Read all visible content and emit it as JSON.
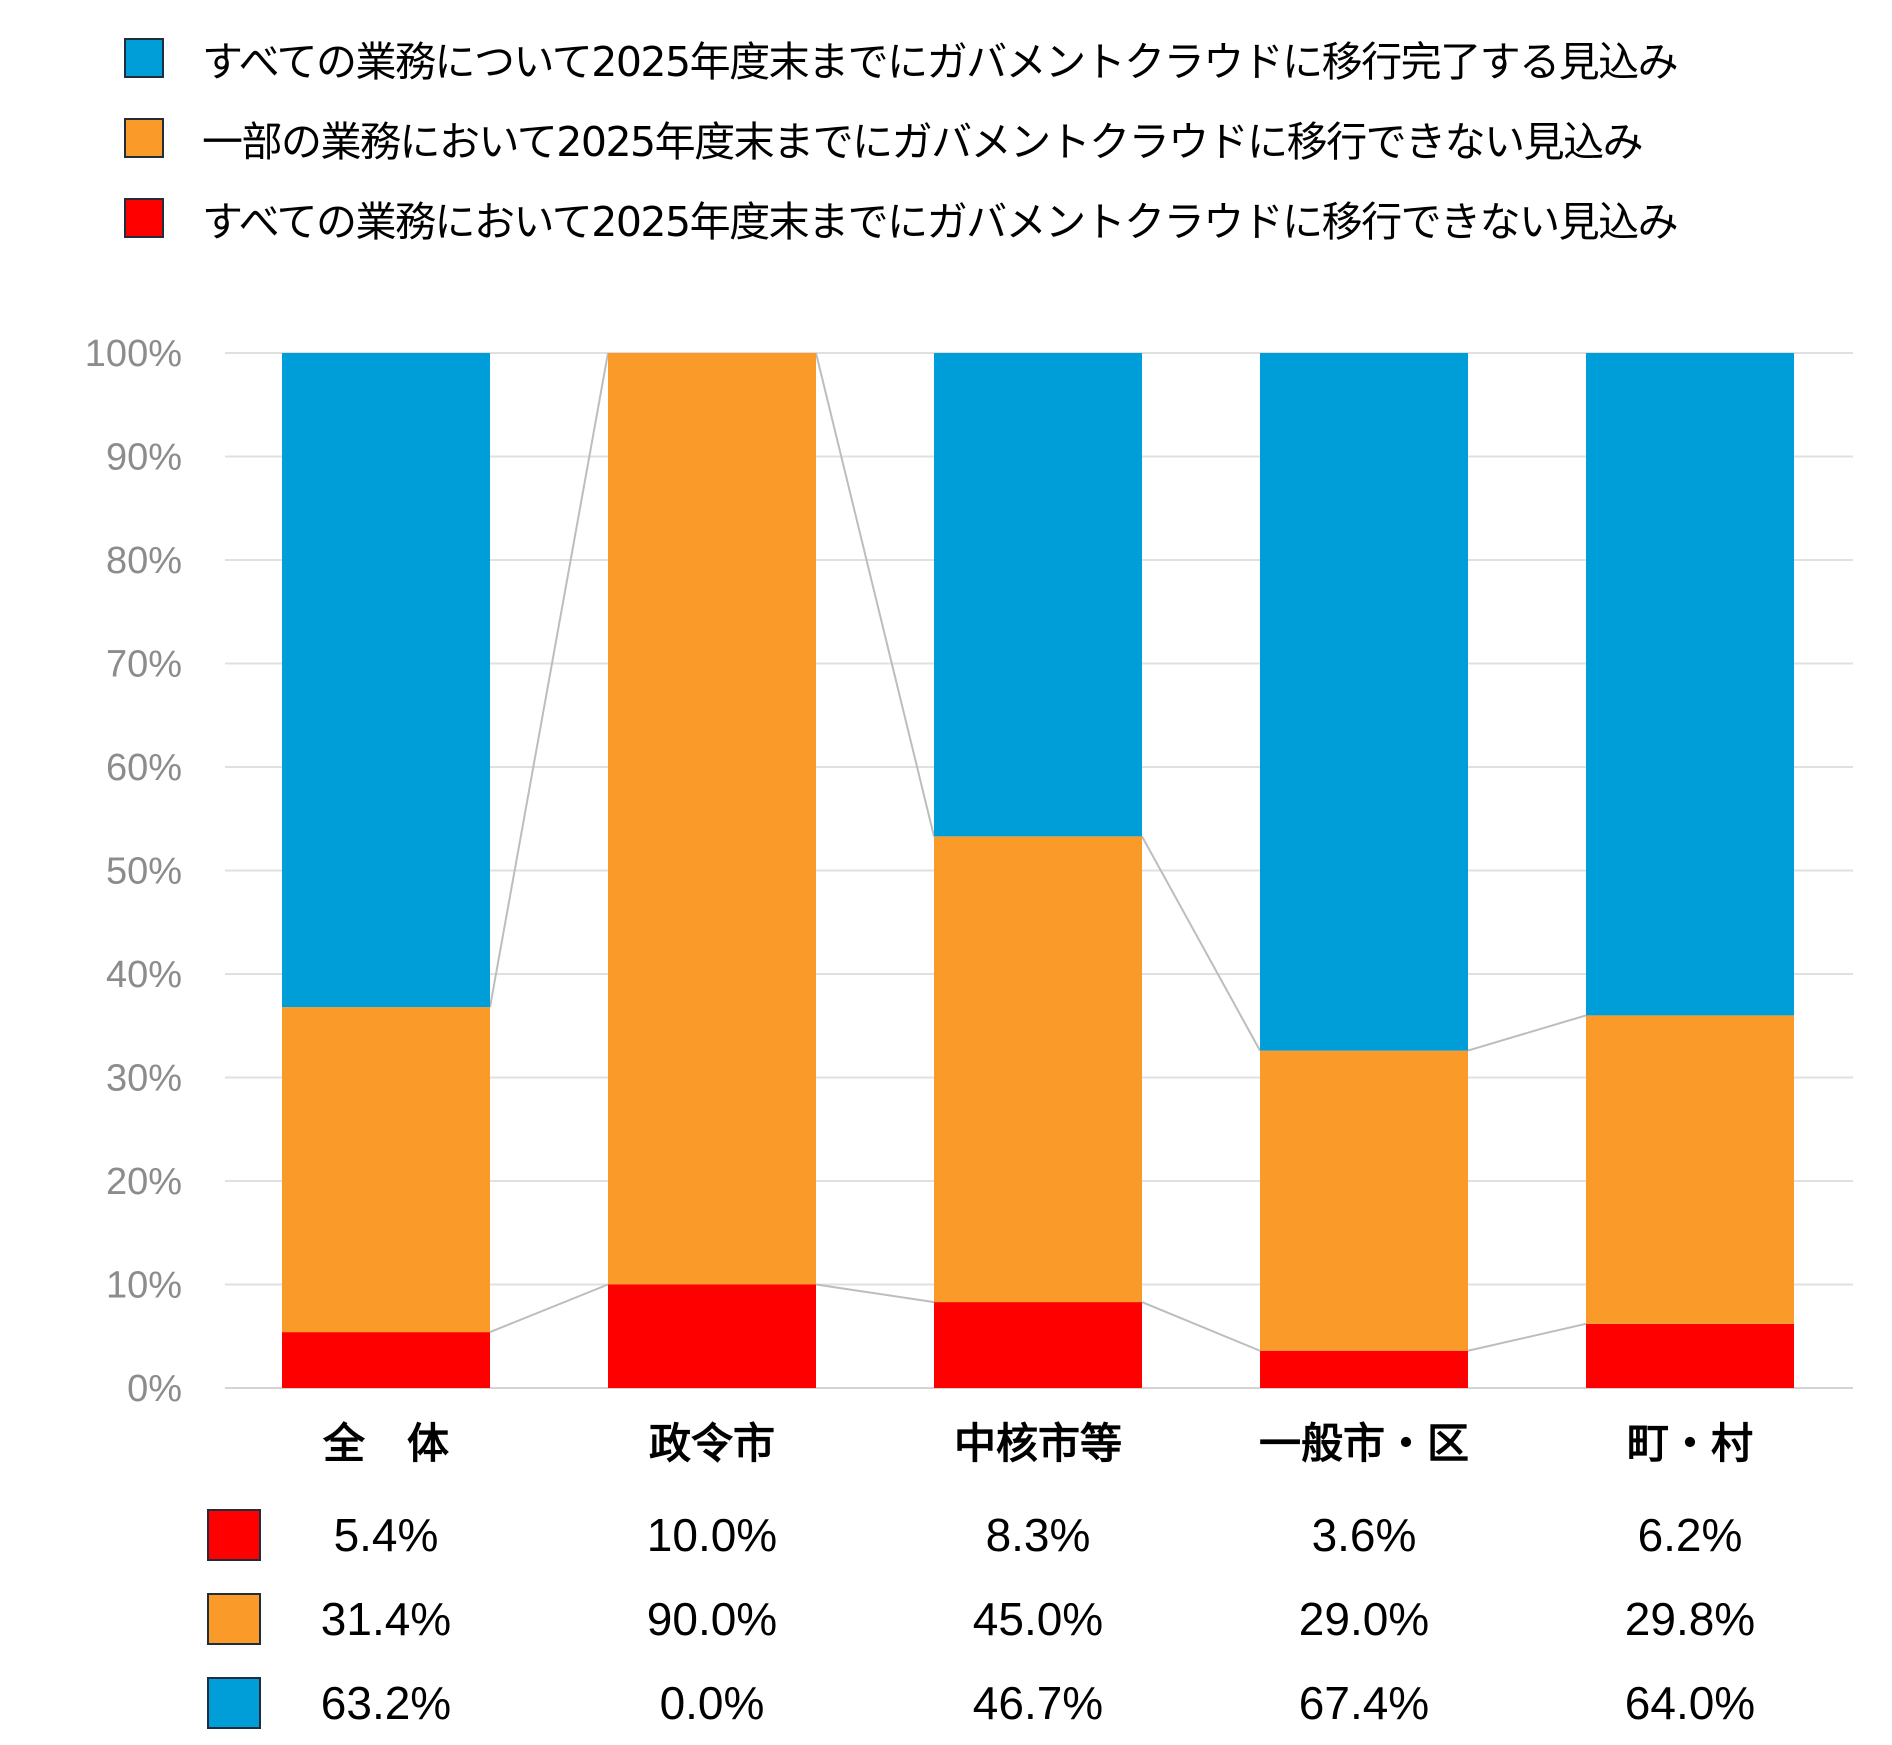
{
  "colors": {
    "blue": "#009ed9",
    "orange": "#fa9a28",
    "red": "#ff0000"
  },
  "chart_data": {
    "type": "bar",
    "stacked": true,
    "categories": [
      "全　体",
      "政令市",
      "中核市等",
      "一般市・区",
      "町・村"
    ],
    "series": [
      {
        "name": "すべての業務において2025年度末までにガバメントクラウドに移行できない見込み",
        "color": "#ff0000",
        "values": [
          5.4,
          10.0,
          8.3,
          3.6,
          6.2
        ],
        "labels": [
          "5.4%",
          "10.0%",
          "8.3%",
          "3.6%",
          "6.2%"
        ]
      },
      {
        "name": "一部の業務において2025年度末までにガバメントクラウドに移行できない見込み",
        "color": "#fa9a28",
        "values": [
          31.4,
          90.0,
          45.0,
          29.0,
          29.8
        ],
        "labels": [
          "31.4%",
          "90.0%",
          "45.0%",
          "29.0%",
          "29.8%"
        ]
      },
      {
        "name": "すべての業務について2025年度末までにガバメントクラウドに移行完了する見込み",
        "color": "#009ed9",
        "values": [
          63.2,
          0.0,
          46.7,
          67.4,
          64.0
        ],
        "labels": [
          "63.2%",
          "0.0%",
          "46.7%",
          "67.4%",
          "64.0%"
        ]
      }
    ],
    "legend_order": [
      2,
      1,
      0
    ],
    "y_ticks": [
      "0%",
      "10%",
      "20%",
      "30%",
      "40%",
      "50%",
      "60%",
      "70%",
      "80%",
      "90%",
      "100%"
    ],
    "ylim": [
      0,
      100
    ],
    "grid": true,
    "series_lines": true,
    "legend_position": "top",
    "data_table": "below"
  }
}
